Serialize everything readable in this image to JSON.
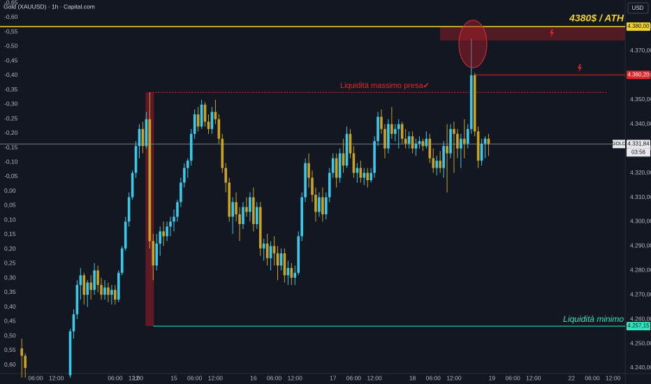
{
  "chart_data": {
    "type": "candlestick",
    "title": "Gold (XAUUSD) · 1h · Capital.com",
    "currency": "USD",
    "symbol": "GOLD",
    "countdown": "03:56",
    "up_color": "#3cc8e8",
    "down_color": "#c9a227",
    "x": [
      -21,
      -20,
      -7,
      -6,
      -5,
      -4,
      -3,
      -2,
      -1,
      0,
      1,
      2,
      3,
      4,
      5,
      6,
      7,
      8,
      9,
      10,
      11,
      12,
      13,
      14,
      15,
      16,
      17,
      18,
      19,
      20,
      21,
      22,
      23,
      24,
      25,
      26,
      27,
      28,
      29,
      30,
      31,
      32,
      33,
      34,
      35,
      36,
      37,
      38,
      39,
      40,
      41,
      42,
      43,
      44,
      45,
      46,
      47,
      48,
      49,
      50,
      51,
      52,
      53,
      54,
      55,
      56,
      57,
      58,
      59,
      60,
      61,
      62,
      63,
      64,
      65,
      66,
      67,
      68,
      69,
      70,
      71,
      72,
      73,
      74,
      75,
      76,
      77,
      78,
      79,
      80,
      81,
      82,
      83,
      84,
      85,
      86,
      87,
      88,
      89,
      90,
      91,
      92,
      93,
      94,
      95,
      96,
      97,
      98,
      99,
      100,
      101,
      102,
      103,
      104,
      105,
      106,
      107,
      108,
      109,
      110,
      111,
      112,
      113,
      114
    ],
    "open": [
      4248,
      4245,
      4237,
      4255,
      4262,
      4274,
      4278,
      4270,
      4275,
      4272,
      4280,
      4274,
      4270,
      4273,
      4270,
      4272,
      4268,
      4279,
      4289,
      4300,
      4310,
      4320,
      4331,
      4338,
      4331,
      4342,
      4292,
      4282,
      4291,
      4296,
      4294,
      4298,
      4300,
      4302,
      4308,
      4316,
      4322,
      4325,
      4336,
      4344,
      4339,
      4348,
      4341,
      4338,
      4345,
      4342,
      4334,
      4322,
      4316,
      4302,
      4308,
      4303,
      4299,
      4306,
      4304,
      4310,
      4299,
      4306,
      4289,
      4291,
      4285,
      4290,
      4287,
      4282,
      4287,
      4278,
      4281,
      4277,
      4279,
      4294,
      4310,
      4324,
      4318,
      4311,
      4304,
      4310,
      4303,
      4310,
      4320,
      4326,
      4318,
      4328,
      4323,
      4336,
      4328,
      4320,
      4322,
      4318,
      4320,
      4317,
      4320,
      4333,
      4343,
      4338,
      4330,
      4340,
      4336,
      4338,
      4340,
      4334,
      4332,
      4335,
      4330,
      4332,
      4333,
      4331,
      4334,
      4326,
      4322,
      4325,
      4322,
      4331,
      4328,
      4338,
      4336,
      4330,
      4334,
      4332,
      4338,
      4360,
      4337,
      4325,
      4332,
      4334
    ],
    "high": [
      4252,
      4246,
      4256,
      4264,
      4276,
      4281,
      4279,
      4276,
      4278,
      4283,
      4282,
      4277,
      4276,
      4275,
      4274,
      4274,
      4280,
      4290,
      4302,
      4312,
      4321,
      4333,
      4340,
      4341,
      4345,
      4353,
      4295,
      4295,
      4298,
      4300,
      4300,
      4302,
      4305,
      4309,
      4318,
      4324,
      4326,
      4338,
      4346,
      4347,
      4350,
      4349,
      4344,
      4347,
      4350,
      4344,
      4336,
      4324,
      4318,
      4310,
      4312,
      4306,
      4308,
      4310,
      4312,
      4314,
      4308,
      4308,
      4293,
      4295,
      4292,
      4294,
      4290,
      4289,
      4289,
      4284,
      4283,
      4282,
      4296,
      4312,
      4326,
      4328,
      4321,
      4314,
      4312,
      4314,
      4312,
      4322,
      4328,
      4328,
      4330,
      4334,
      4339,
      4338,
      4331,
      4324,
      4325,
      4322,
      4322,
      4322,
      4335,
      4345,
      4346,
      4340,
      4342,
      4347,
      4340,
      4342,
      4341,
      4338,
      4337,
      4337,
      4334,
      4335,
      4334,
      4337,
      4336,
      4330,
      4327,
      4329,
      4333,
      4340,
      4340,
      4341,
      4338,
      4336,
      4342,
      4340,
      4375,
      4361,
      4339,
      4334,
      4335,
      4336
    ],
    "low": [
      4236,
      4236,
      4236,
      4252,
      4260,
      4268,
      4266,
      4265,
      4268,
      4270,
      4271,
      4268,
      4268,
      4267,
      4266,
      4266,
      4267,
      4278,
      4288,
      4298,
      4309,
      4318,
      4326,
      4328,
      4330,
      4289,
      4276,
      4280,
      4286,
      4290,
      4292,
      4294,
      4296,
      4300,
      4306,
      4314,
      4318,
      4323,
      4334,
      4337,
      4338,
      4339,
      4336,
      4336,
      4340,
      4332,
      4320,
      4312,
      4300,
      4295,
      4300,
      4292,
      4297,
      4302,
      4300,
      4296,
      4297,
      4286,
      4284,
      4282,
      4280,
      4282,
      4276,
      4280,
      4275,
      4274,
      4274,
      4274,
      4278,
      4292,
      4308,
      4314,
      4308,
      4300,
      4302,
      4300,
      4301,
      4308,
      4318,
      4314,
      4316,
      4320,
      4322,
      4326,
      4318,
      4316,
      4316,
      4315,
      4314,
      4316,
      4318,
      4331,
      4336,
      4326,
      4328,
      4334,
      4333,
      4330,
      4332,
      4330,
      4330,
      4328,
      4327,
      4330,
      4329,
      4330,
      4324,
      4320,
      4319,
      4320,
      4318,
      4312,
      4326,
      4320,
      4326,
      4322,
      4326,
      4330,
      4336,
      4335,
      4322,
      4323,
      4326,
      4327
    ],
    "close": [
      4245,
      4240,
      4255,
      4262,
      4274,
      4278,
      4270,
      4275,
      4272,
      4280,
      4274,
      4270,
      4273,
      4270,
      4272,
      4268,
      4279,
      4289,
      4300,
      4310,
      4320,
      4331,
      4338,
      4331,
      4342,
      4292,
      4282,
      4291,
      4296,
      4294,
      4298,
      4300,
      4302,
      4308,
      4316,
      4322,
      4325,
      4336,
      4344,
      4339,
      4348,
      4341,
      4338,
      4345,
      4342,
      4334,
      4322,
      4316,
      4302,
      4308,
      4303,
      4299,
      4306,
      4304,
      4310,
      4299,
      4306,
      4289,
      4291,
      4285,
      4290,
      4287,
      4282,
      4287,
      4278,
      4281,
      4277,
      4279,
      4294,
      4310,
      4324,
      4318,
      4311,
      4304,
      4310,
      4303,
      4310,
      4320,
      4326,
      4318,
      4328,
      4323,
      4336,
      4328,
      4320,
      4322,
      4318,
      4320,
      4317,
      4320,
      4333,
      4343,
      4338,
      4330,
      4340,
      4336,
      4338,
      4340,
      4334,
      4332,
      4335,
      4330,
      4332,
      4333,
      4331,
      4334,
      4326,
      4322,
      4325,
      4322,
      4331,
      4328,
      4338,
      4336,
      4330,
      4334,
      4332,
      4338,
      4360,
      4337,
      4325,
      4332,
      4334,
      4331.84
    ],
    "xlim": [
      -27.3,
      153.5
    ],
    "xticks": [
      {
        "value": -17,
        "label": "06:00"
      },
      {
        "value": -11,
        "label": "12:00"
      },
      12,
      {
        "value": 6,
        "label": "06:00"
      },
      {
        "value": 12,
        "label": "12:00"
      },
      {
        "value": 23,
        "label": "15"
      },
      {
        "value": 29,
        "label": "06:00"
      },
      {
        "value": 35,
        "label": "12:00"
      },
      {
        "value": 46,
        "label": "16"
      },
      {
        "value": 52,
        "label": "06:00"
      },
      {
        "value": 58,
        "label": "12:00"
      },
      {
        "value": 69,
        "label": "17"
      },
      {
        "value": 75,
        "label": "06:00"
      },
      {
        "value": 81,
        "label": "12:00"
      },
      {
        "value": 92,
        "label": "18"
      },
      {
        "value": 98,
        "label": "06:00"
      },
      {
        "value": 104,
        "label": "12:00"
      },
      {
        "value": 115,
        "label": "19"
      },
      {
        "value": 121,
        "label": "06:00"
      },
      {
        "value": 127,
        "label": "12:00"
      },
      {
        "value": 138,
        "label": "22"
      },
      {
        "value": 144,
        "label": "06:00"
      },
      {
        "value": 150,
        "label": "12:00"
      }
    ],
    "ylim": [
      4237.7,
      4390.9
    ],
    "yticks": [
      {
        "value": 4240,
        "label": "4.240,00"
      },
      {
        "value": 4250,
        "label": "4.250,00"
      },
      {
        "value": 4260,
        "label": "4.260,00"
      },
      {
        "value": 4270,
        "label": "4.270,00"
      },
      {
        "value": 4280,
        "label": "4.280,00"
      },
      {
        "value": 4290,
        "label": "4.290,00"
      },
      {
        "value": 4300,
        "label": "4.300,00"
      },
      {
        "value": 4310,
        "label": "4.310,00"
      },
      {
        "value": 4320,
        "label": "4.320,00"
      },
      {
        "value": 4330,
        "label": "4.330,00"
      },
      {
        "value": 4340,
        "label": "4.340,00"
      },
      {
        "value": 4350,
        "label": "4.350,00"
      },
      {
        "value": 4360,
        "label": "4.360,00"
      },
      {
        "value": 4370,
        "label": "4.370,00"
      },
      {
        "value": 4380,
        "label": "4.380,00"
      }
    ],
    "y2lim": [
      0.63,
      -0.66
    ],
    "y2ticks": [
      {
        "value": -0.65,
        "label": "-0,65"
      },
      {
        "value": -0.6,
        "label": "-0,60"
      },
      {
        "value": -0.55,
        "label": "-0,55"
      },
      {
        "value": -0.5,
        "label": "-0,50"
      },
      {
        "value": -0.45,
        "label": "-0,45"
      },
      {
        "value": -0.4,
        "label": "-0,40"
      },
      {
        "value": -0.35,
        "label": "-0,35"
      },
      {
        "value": -0.3,
        "label": "-0,30"
      },
      {
        "value": -0.25,
        "label": "-0,25"
      },
      {
        "value": -0.2,
        "label": "-0,20"
      },
      {
        "value": -0.15,
        "label": "-0,15"
      },
      {
        "value": -0.1,
        "label": "-0,10"
      },
      {
        "value": -0.05,
        "label": "-0,05"
      },
      {
        "value": 0,
        "label": "0,00"
      },
      {
        "value": 0.05,
        "label": "0,05"
      },
      {
        "value": 0.1,
        "label": "0,10"
      },
      {
        "value": 0.15,
        "label": "0,15"
      },
      {
        "value": 0.2,
        "label": "0,20"
      },
      {
        "value": 0.25,
        "label": "0,25"
      },
      {
        "value": 0.3,
        "label": "0,30"
      },
      {
        "value": 0.35,
        "label": "0,35"
      },
      {
        "value": 0.4,
        "label": "0,40"
      },
      {
        "value": 0.45,
        "label": "0,45"
      },
      {
        "value": 0.5,
        "label": "0,50"
      },
      {
        "value": 0.55,
        "label": "0,55"
      },
      {
        "value": 0.6,
        "label": "0,60"
      }
    ],
    "levels": [
      {
        "value": 4380,
        "label": "4.380,00",
        "color": "#f0d22a"
      },
      {
        "value": 4360.2,
        "label": "4.360,20",
        "color": "#e0262b"
      },
      {
        "value": 4331.84,
        "label": "4.331,84",
        "color": "#787b86"
      },
      {
        "value": 4257.15,
        "label": "4.257,15",
        "color": "#2ee6c0"
      }
    ],
    "annotations": [
      "4380$ / ATH",
      "Liquidità massimo presa✔",
      "Liquidità minimo"
    ]
  }
}
